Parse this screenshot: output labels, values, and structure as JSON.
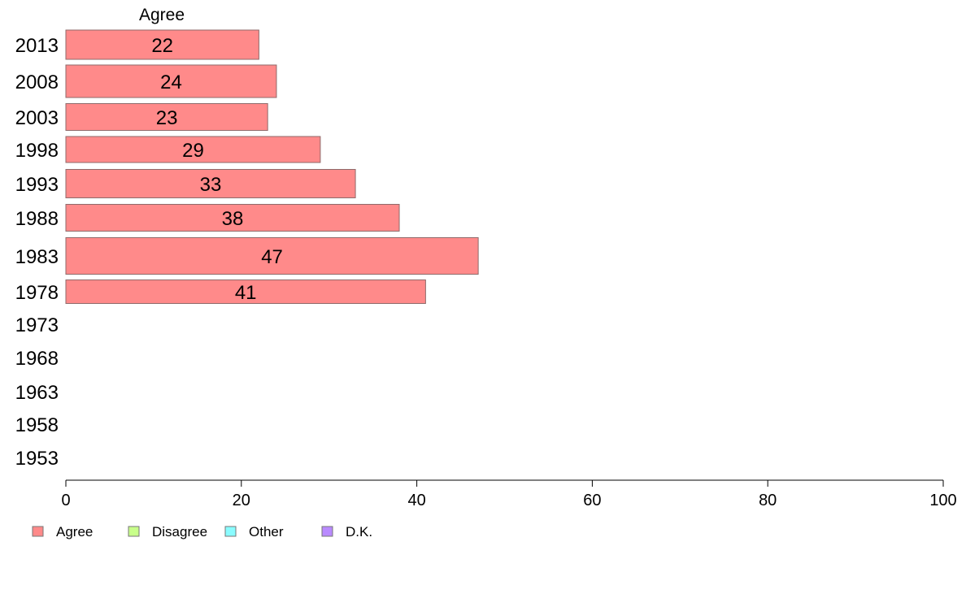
{
  "chart_data": {
    "type": "bar",
    "orientation": "horizontal",
    "column_title": "Agree",
    "categories": [
      "2013",
      "2008",
      "2003",
      "1998",
      "1993",
      "1988",
      "1983",
      "1978",
      "1973",
      "1968",
      "1963",
      "1958",
      "1953"
    ],
    "series": [
      {
        "name": "Agree",
        "color": "#ff8a8a",
        "values": [
          22,
          24,
          23,
          29,
          33,
          38,
          47,
          41,
          null,
          null,
          null,
          null,
          null
        ]
      }
    ],
    "xlim": [
      0,
      100
    ],
    "xticks": [
      0,
      20,
      40,
      60,
      80,
      100
    ],
    "grid": false,
    "legend": {
      "placement": "bottom-left",
      "entries": [
        {
          "label": "Agree",
          "color": "#ff8a8a"
        },
        {
          "label": "Disagree",
          "color": "#c8ff8a"
        },
        {
          "label": "Other",
          "color": "#8afcff"
        },
        {
          "label": "D.K.",
          "color": "#b98aff"
        }
      ]
    }
  }
}
